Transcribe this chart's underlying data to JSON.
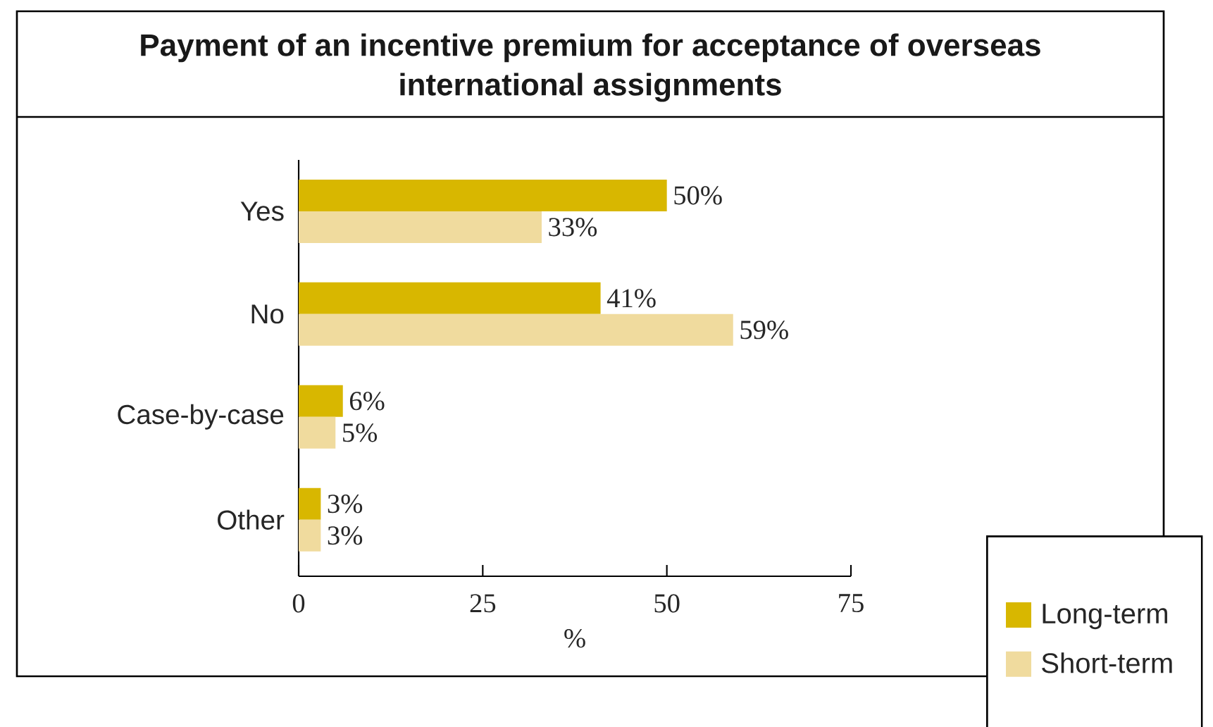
{
  "chart_data": {
    "type": "bar",
    "orientation": "horizontal",
    "title": "Payment of an incentive premium for acceptance of overseas international assignments",
    "xlabel": "%",
    "categories": [
      "Yes",
      "No",
      "Case-by-case",
      "Other"
    ],
    "series": [
      {
        "name": "Long-term",
        "color": "#d8b700",
        "values": [
          50,
          41,
          6,
          3
        ],
        "value_labels": [
          "50%",
          "41%",
          "6%",
          "3%"
        ]
      },
      {
        "name": "Short-term",
        "color": "#f0db9e",
        "values": [
          33,
          59,
          5,
          3
        ],
        "value_labels": [
          "33%",
          "59%",
          "5%",
          "3%"
        ]
      }
    ],
    "xlim": [
      0,
      75
    ],
    "xticks": [
      0,
      25,
      50,
      75
    ],
    "legend": "bottom right"
  }
}
